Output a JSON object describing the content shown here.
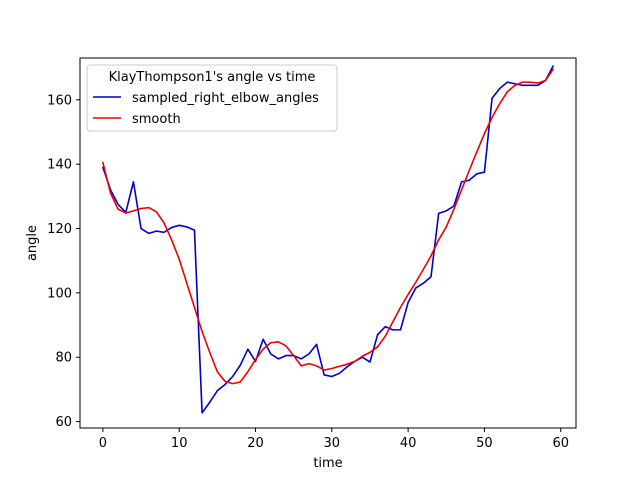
{
  "chart_data": {
    "type": "line",
    "title": "",
    "xlabel": "time",
    "ylabel": "angle",
    "xlim": [
      -3,
      62
    ],
    "ylim": [
      58,
      173
    ],
    "xticks": [
      0,
      10,
      20,
      30,
      40,
      50,
      60
    ],
    "yticks": [
      60,
      80,
      100,
      120,
      140,
      160
    ],
    "grid": false,
    "legend": {
      "title": "KlayThompson1's angle vs time",
      "placement": "top-left"
    },
    "series": [
      {
        "name": "sampled_right_elbow_angles",
        "color": "#0000cc",
        "x": [
          0,
          1,
          2,
          3,
          4,
          5,
          6,
          7,
          8,
          9,
          10,
          11,
          12,
          13,
          14,
          15,
          16,
          17,
          18,
          19,
          20,
          21,
          22,
          23,
          24,
          25,
          26,
          27,
          28,
          29,
          30,
          31,
          32,
          33,
          34,
          35,
          36,
          37,
          38,
          39,
          40,
          41,
          42,
          43,
          44,
          45,
          46,
          47,
          48,
          49,
          50,
          51,
          52,
          53,
          54,
          55,
          56,
          57,
          58,
          59
        ],
        "y": [
          139,
          132,
          127.5,
          125,
          134.5,
          120,
          118.5,
          119.2,
          118.8,
          120.3,
          121,
          120.5,
          119.5,
          62.7,
          66,
          69.6,
          71.5,
          74,
          77.5,
          82.5,
          78.7,
          85.6,
          81,
          79.5,
          80.5,
          80.5,
          79.5,
          81,
          84,
          74.5,
          74,
          75,
          77,
          78.7,
          80,
          78.5,
          87,
          89.5,
          88.5,
          88.5,
          97,
          101.5,
          103,
          105,
          124.7,
          125.5,
          127,
          134.5,
          135,
          137,
          137.5,
          160.5,
          163.5,
          165.5,
          165,
          164.5,
          164.5,
          164.5,
          166,
          170.5
        ]
      },
      {
        "name": "smooth",
        "color": "#ee0000",
        "x": [
          0,
          1,
          2,
          3,
          4,
          5,
          6,
          7,
          8,
          9,
          10,
          11,
          12,
          13,
          14,
          15,
          16,
          17,
          18,
          19,
          20,
          21,
          22,
          23,
          24,
          25,
          26,
          27,
          28,
          29,
          30,
          31,
          32,
          33,
          34,
          35,
          36,
          37,
          38,
          39,
          40,
          41,
          42,
          43,
          44,
          45,
          46,
          47,
          48,
          49,
          50,
          51,
          52,
          53,
          54,
          55,
          56,
          57,
          58,
          59
        ],
        "y": [
          140.5,
          131,
          126,
          124.8,
          125.5,
          126.2,
          126.5,
          125.2,
          121.8,
          116.5,
          110.5,
          103,
          95.5,
          88,
          81.5,
          75.5,
          72.5,
          71.8,
          72.3,
          75.5,
          79.3,
          82.5,
          84.5,
          84.8,
          83.5,
          80.5,
          77.3,
          78,
          77.3,
          76,
          76.5,
          77.2,
          77.8,
          78.7,
          80.3,
          81.5,
          83.2,
          86.5,
          91,
          95.5,
          99.5,
          103.3,
          107.3,
          111.5,
          116.5,
          120.5,
          126,
          132,
          138,
          143.8,
          149.5,
          154.5,
          158.8,
          162.5,
          164.5,
          165.5,
          165.5,
          165.2,
          166,
          169.5
        ]
      }
    ]
  }
}
